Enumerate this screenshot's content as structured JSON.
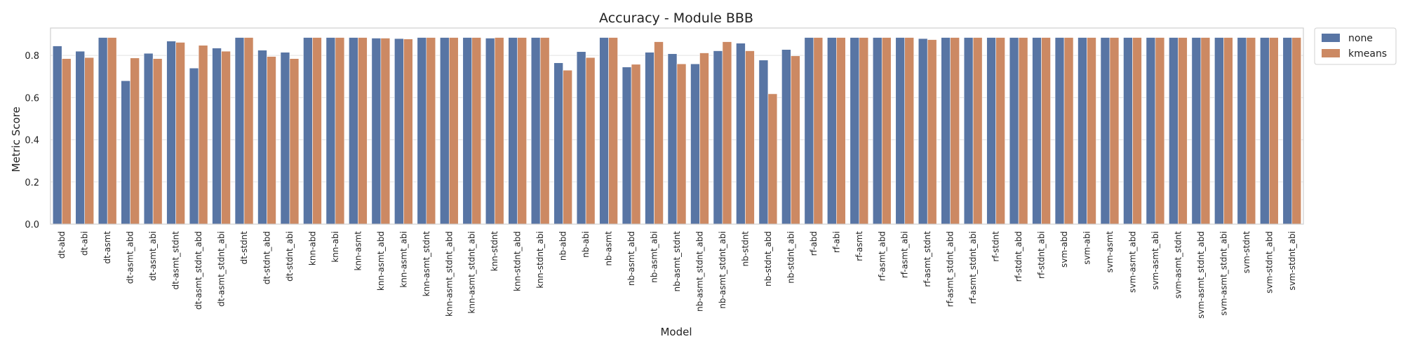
{
  "chart_data": {
    "type": "bar",
    "title": "Accuracy - Module BBB",
    "xlabel": "Model",
    "ylabel": "Metric Score",
    "ylim": [
      0,
      0.93
    ],
    "yticks": [
      "0.0",
      "0.2",
      "0.4",
      "0.6",
      "0.8"
    ],
    "grid": true,
    "legend_position": "upper right, outside plot",
    "categories": [
      "dt-abd",
      "dt-abi",
      "dt-asmt",
      "dt-asmt_abd",
      "dt-asmt_abi",
      "dt-asmt_stdnt",
      "dt-asmt_stdnt_abd",
      "dt-asmt_stdnt_abi",
      "dt-stdnt",
      "dt-stdnt_abd",
      "dt-stdnt_abi",
      "knn-abd",
      "knn-abi",
      "knn-asmt",
      "knn-asmt_abd",
      "knn-asmt_abi",
      "knn-asmt_stdnt",
      "knn-asmt_stdnt_abd",
      "knn-asmt_stdnt_abi",
      "knn-stdnt",
      "knn-stdnt_abd",
      "knn-stdnt_abi",
      "nb-abd",
      "nb-abi",
      "nb-asmt",
      "nb-asmt_abd",
      "nb-asmt_abi",
      "nb-asmt_stdnt",
      "nb-asmt_stdnt_abd",
      "nb-asmt_stdnt_abi",
      "nb-stdnt",
      "nb-stdnt_abd",
      "nb-stdnt_abi",
      "rf-abd",
      "rf-abi",
      "rf-asmt",
      "rf-asmt_abd",
      "rf-asmt_abi",
      "rf-asmt_stdnt",
      "rf-asmt_stdnt_abd",
      "rf-asmt_stdnt_abi",
      "rf-stdnt",
      "rf-stdnt_abd",
      "rf-stdnt_abi",
      "svm-abd",
      "svm-abi",
      "svm-asmt",
      "svm-asmt_abd",
      "svm-asmt_abi",
      "svm-asmt_stdnt",
      "svm-asmt_stdnt_abd",
      "svm-asmt_stdnt_abi",
      "svm-stdnt",
      "svm-stdnt_abd",
      "svm-stdnt_abi"
    ],
    "series": [
      {
        "name": "none",
        "color": "#5875a4",
        "values": [
          0.845,
          0.82,
          0.885,
          0.68,
          0.81,
          0.868,
          0.74,
          0.835,
          0.885,
          0.825,
          0.815,
          0.885,
          0.885,
          0.885,
          0.882,
          0.88,
          0.885,
          0.885,
          0.885,
          0.882,
          0.885,
          0.885,
          0.765,
          0.818,
          0.885,
          0.745,
          0.815,
          0.808,
          0.76,
          0.822,
          0.858,
          0.778,
          0.828,
          0.885,
          0.885,
          0.885,
          0.885,
          0.885,
          0.88,
          0.885,
          0.885,
          0.885,
          0.885,
          0.885,
          0.885,
          0.885,
          0.885,
          0.885,
          0.885,
          0.885,
          0.885,
          0.885,
          0.885,
          0.885,
          0.885
        ]
      },
      {
        "name": "kmeans",
        "color": "#cc8963",
        "values": [
          0.785,
          0.79,
          0.885,
          0.788,
          0.785,
          0.862,
          0.848,
          0.82,
          0.885,
          0.795,
          0.785,
          0.885,
          0.885,
          0.885,
          0.882,
          0.878,
          0.885,
          0.885,
          0.885,
          0.885,
          0.885,
          0.885,
          0.73,
          0.79,
          0.885,
          0.758,
          0.865,
          0.76,
          0.812,
          0.865,
          0.822,
          0.618,
          0.798,
          0.885,
          0.885,
          0.885,
          0.885,
          0.885,
          0.875,
          0.885,
          0.885,
          0.885,
          0.885,
          0.885,
          0.885,
          0.885,
          0.885,
          0.885,
          0.885,
          0.885,
          0.885,
          0.885,
          0.885,
          0.885,
          0.885
        ]
      }
    ]
  }
}
